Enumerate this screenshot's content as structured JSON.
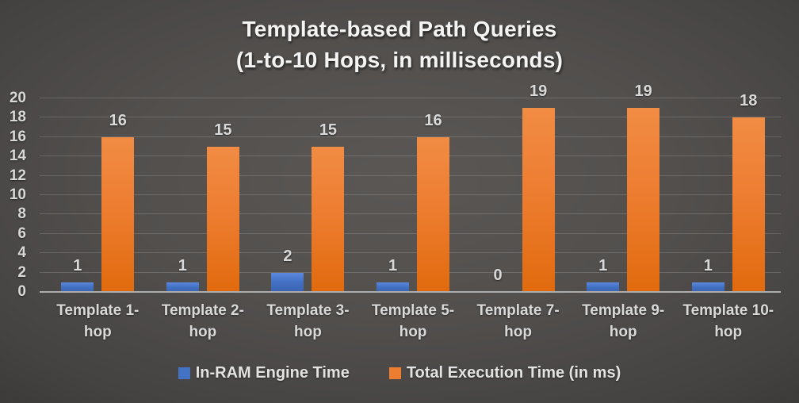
{
  "title": {
    "line1": "Template-based Path Queries",
    "line2": "(1-to-10 Hops, in milliseconds)"
  },
  "chart_data": {
    "type": "bar",
    "title": "Template-based Path Queries (1-to-10 Hops, in milliseconds)",
    "categories": [
      "Template 1-hop",
      "Template 2-hop",
      "Template 3-hop",
      "Template 5-hop",
      "Template 7-hop",
      "Template 9-hop",
      "Template 10-hop"
    ],
    "series": [
      {
        "name": "In-RAM Engine Time",
        "color": "#4472C4",
        "color_top": "#5C89DF",
        "color_bottom": "#3A63B2",
        "values": [
          1,
          1,
          2,
          1,
          0,
          1,
          1
        ]
      },
      {
        "name": "Total Execution Time (in ms)",
        "color": "#ED7D31",
        "color_top": "#F18C44",
        "color_bottom": "#E16A0D",
        "values": [
          16,
          15,
          15,
          16,
          19,
          19,
          18
        ]
      }
    ],
    "xlabel": "",
    "ylabel": "",
    "ylim": [
      0,
      20
    ],
    "ytick_step": 2,
    "grid": true,
    "data_labels": true,
    "legend_position": "bottom"
  },
  "colors": {
    "background_center": "#5A5755",
    "background_edge": "#181818",
    "label_text": "#D9D9D9",
    "title_text": "#F4F4F4",
    "gridline": "rgba(255,255,255,0.16)",
    "axis_line": "#ACACAC"
  }
}
